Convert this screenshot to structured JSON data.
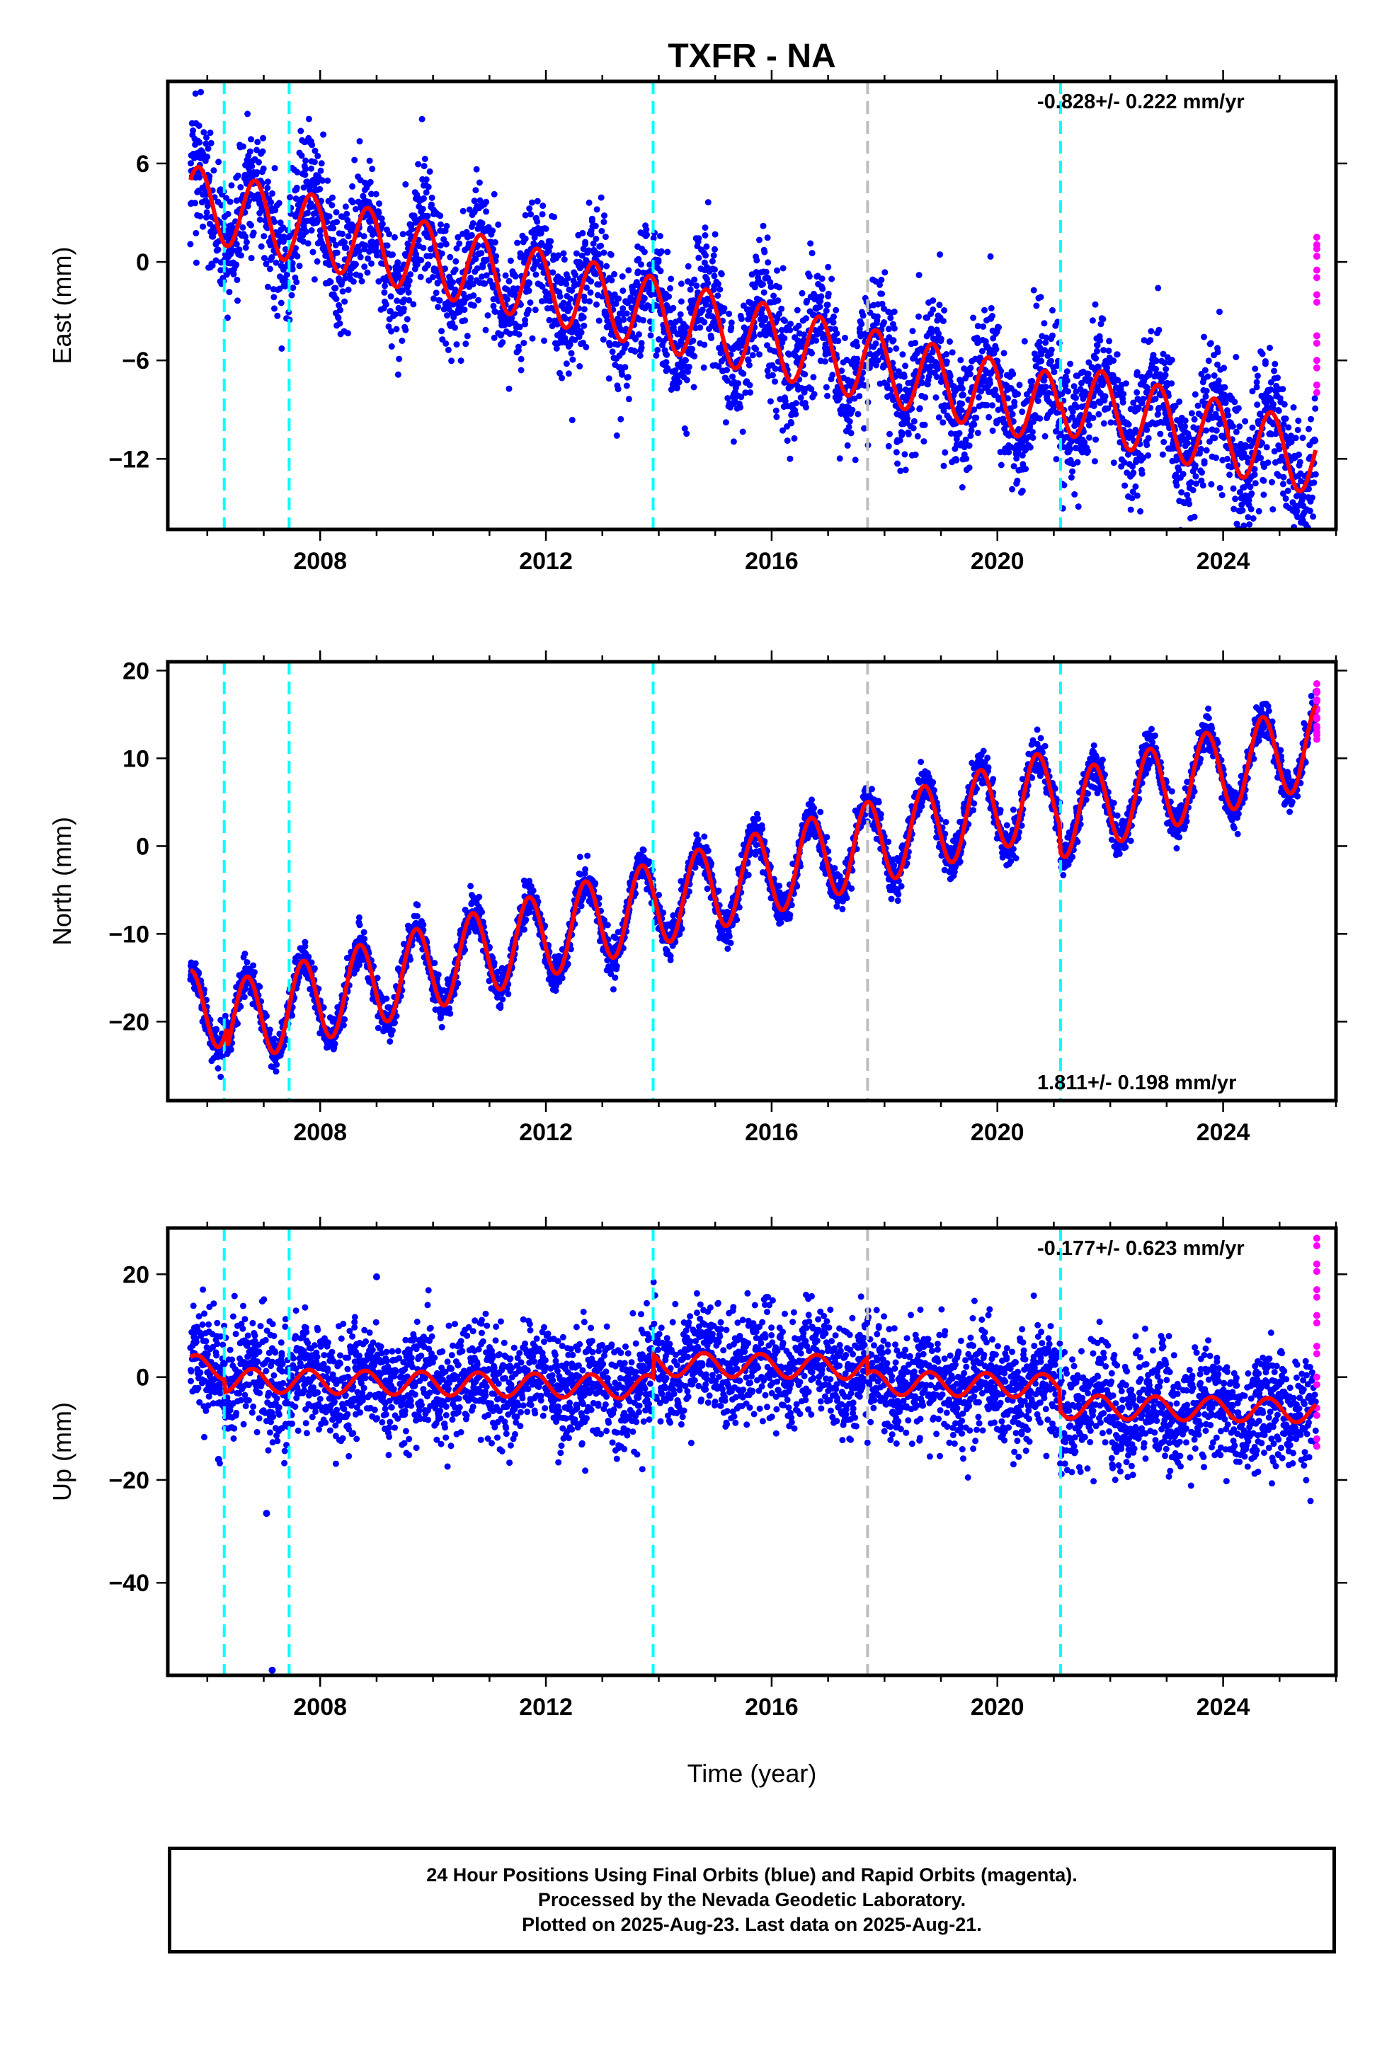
{
  "title": "TXFR - NA",
  "xlabel": "Time (year)",
  "footer": {
    "line1": "24 Hour Positions Using Final Orbits (blue) and Rapid Orbits (magenta).",
    "line2": "Processed by the Nevada Geodetic Laboratory.",
    "line3": "Plotted on 2025-Aug-23. Last data on 2025-Aug-21."
  },
  "colors": {
    "final_orbits": "#0000ff",
    "rapid_orbits": "#ff00ff",
    "model": "#ff0000",
    "equipment_change": "#00ffff",
    "other_event": "#bebebe"
  },
  "chart_data": [
    {
      "type": "scatter",
      "panel": "east",
      "ylabel": "East (mm)",
      "rate_text": "-0.828+/- 0.222 mm/yr",
      "rate_position": "top-right",
      "xlim": [
        2005.3,
        2026.0
      ],
      "ylim": [
        -16.3,
        11.0
      ],
      "xticks": [
        2008,
        2012,
        2016,
        2020,
        2024
      ],
      "yticks": [
        6,
        0,
        -6,
        -12
      ],
      "ytick_labels": [
        "6",
        "0",
        "−6",
        "−12"
      ],
      "data_start": 2005.7,
      "data_end": 2025.64,
      "rate_mm_per_yr": -0.828,
      "value_at_start": 3.7,
      "annual_amplitude_mm": 2.2,
      "annual_phase": 0.6,
      "scatter_sd_mm": 1.9,
      "offsets": [
        [
          2021.12,
          0.8
        ]
      ],
      "rapid_orbit_values": [
        1.5,
        0.8,
        -0.5,
        -2.0,
        -4.5,
        -6.0,
        -7.5
      ],
      "cyan_events": [
        2006.3,
        2007.45,
        2013.9,
        2021.12
      ],
      "gray_events": [
        2017.7
      ]
    },
    {
      "type": "scatter",
      "panel": "north",
      "ylabel": "North (mm)",
      "rate_text": "1.811+/- 0.198 mm/yr",
      "rate_position": "bottom-right",
      "xlim": [
        2005.3,
        2026.0
      ],
      "ylim": [
        -29.0,
        21.0
      ],
      "xticks": [
        2008,
        2012,
        2016,
        2020,
        2024
      ],
      "yticks": [
        20,
        10,
        0,
        -10,
        -20
      ],
      "ytick_labels": [
        "20",
        "10",
        "0",
        "−10",
        "−20"
      ],
      "data_start": 2005.7,
      "data_end": 2025.64,
      "rate_mm_per_yr": 1.811,
      "value_at_start": -19.0,
      "annual_amplitude_mm": 4.8,
      "annual_phase": 0.45,
      "scatter_sd_mm": 1.1,
      "offsets": [
        [
          2006.35,
          -2.5
        ],
        [
          2021.12,
          -3.0
        ]
      ],
      "rapid_orbit_values": [
        18.5,
        17.5,
        16.5,
        15.5,
        14.5,
        13.5,
        13.0
      ],
      "cyan_events": [
        2006.3,
        2007.45,
        2013.9,
        2021.12
      ],
      "gray_events": [
        2017.7
      ]
    },
    {
      "type": "scatter",
      "panel": "up",
      "ylabel": "Up (mm)",
      "rate_text": "-0.177+/- 0.623 mm/yr",
      "rate_position": "top-right",
      "xlim": [
        2005.3,
        2026.0
      ],
      "ylim": [
        -58.0,
        29.0
      ],
      "xticks": [
        2008,
        2012,
        2016,
        2020,
        2024
      ],
      "yticks": [
        20,
        0,
        -20,
        -40
      ],
      "ytick_labels": [
        "20",
        "0",
        "−20",
        "−40"
      ],
      "data_start": 2005.7,
      "data_end": 2025.64,
      "rate_mm_per_yr": -0.177,
      "value_at_start": 2.0,
      "annual_amplitude_mm": 2.3,
      "annual_phase": 0.55,
      "scatter_sd_mm": 5.5,
      "offsets": [
        [
          2006.3,
          -2.5
        ],
        [
          2013.9,
          4.5
        ],
        [
          2017.7,
          -3.0
        ],
        [
          2021.12,
          -4.0
        ]
      ],
      "outliers": [
        [
          2007.15,
          -57.0
        ],
        [
          2007.05,
          -26.5
        ],
        [
          2006.2,
          -16.0
        ],
        [
          2009.0,
          19.5
        ]
      ],
      "rapid_orbit_values": [
        27.0,
        22.0,
        17.0,
        12.0,
        6.0,
        0.0,
        -6.0,
        -12.0
      ],
      "cyan_events": [
        2006.3,
        2007.45,
        2013.9,
        2021.12
      ],
      "gray_events": [
        2017.7
      ]
    }
  ]
}
